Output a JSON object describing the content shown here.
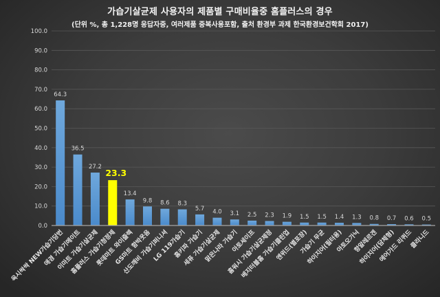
{
  "header": {
    "title": "가습기살균제 사용자의 제품별 구매비율중 홈플러스의 경우",
    "subtitle": "(단위 %, 총 1,228명 응답자중, 여러제품 중복사용포함, 출처 환경부 과제 한국환경보건학회 2017)"
  },
  "colors": {
    "bar": "#5b9bd5",
    "highlight": "#ffff00",
    "label": "#d9d9d9",
    "background": "#3c3c3c"
  },
  "chart_data": {
    "type": "bar",
    "title": "가습기살균제 사용자의 제품별 구매비율중 홈플러스의 경우",
    "subtitle": "(단위 %, 총 1,228명 응답자중, 여러제품 중복사용포함, 출처 환경부 과제 한국환경보건학회 2017)",
    "xlabel": "",
    "ylabel": "",
    "ylim": [
      0,
      100
    ],
    "yticks": [
      "0.0",
      "10.0",
      "20.0",
      "30.0",
      "40.0",
      "50.0",
      "60.0",
      "70.0",
      "80.0",
      "90.0",
      "100.0"
    ],
    "grid": true,
    "legend": null,
    "highlight_index": 3,
    "categories": [
      "옥시싹싹 NEW가습기당번",
      "애경 가습기메이트",
      "이마트 가습기살균제",
      "홈플러스 가습기청정제",
      "롯데마트 와이즐렉",
      "GS마트 함박웃음",
      "산도깨비 가습기퍼니셔",
      "LG 119가습기",
      "홈키파 가습기",
      "세퓨 가습기살균제",
      "맑은나라 가습기",
      "아토세이프",
      "홈워시 가습기살균제정",
      "베지터블홈 가습기클린업",
      "엔위드(별포장)",
      "가습기 무균",
      "하이지어(필터용)",
      "아토오가닉",
      "항알레르겐",
      "하이지어(담체형)",
      "에어가드 리퀴드",
      "클라니드"
    ],
    "values": [
      64.3,
      36.5,
      27.2,
      23.3,
      13.4,
      9.8,
      8.6,
      8.3,
      5.7,
      4.0,
      3.1,
      2.5,
      2.3,
      1.9,
      1.5,
      1.5,
      1.4,
      1.3,
      0.8,
      0.7,
      0.6,
      0.5
    ],
    "value_labels": [
      "64.3",
      "36.5",
      "27.2",
      "23.3",
      "13.4",
      "9.8",
      "8.6",
      "8.3",
      "5.7",
      "4.0",
      "3.1",
      "2.5",
      "2.3",
      "1.9",
      "1.5",
      "1.5",
      "1.4",
      "1.3",
      "0.8",
      "0.7",
      "0.6",
      "0.5"
    ]
  }
}
